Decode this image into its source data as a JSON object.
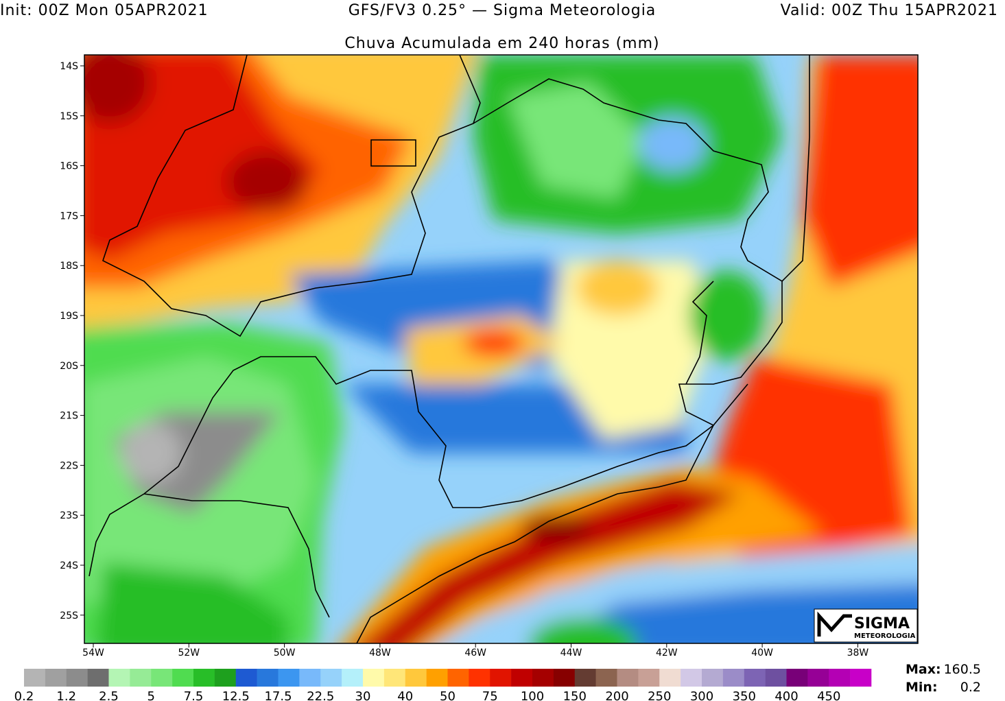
{
  "header": {
    "init": "Init: 00Z Mon 05APR2021",
    "model": "GFS/FV3 0.25° — Sigma Meteorologia",
    "valid": "Valid: 00Z Thu 15APR2021",
    "title": "Chuva Acumulada em 240 horas (mm)"
  },
  "map": {
    "lat_labels": [
      "14S",
      "15S",
      "16S",
      "17S",
      "18S",
      "19S",
      "20S",
      "21S",
      "22S",
      "23S",
      "24S",
      "25S"
    ],
    "lon_labels": [
      "54W",
      "52W",
      "50W",
      "48W",
      "46W",
      "44W",
      "42W",
      "40W",
      "38W"
    ]
  },
  "colorbar": {
    "labels": [
      "0.2",
      "1.2",
      "2.5",
      "5",
      "7.5",
      "12.5",
      "17.5",
      "22.5",
      "30",
      "40",
      "50",
      "75",
      "100",
      "150",
      "200",
      "250",
      "300",
      "350",
      "400",
      "450"
    ],
    "colors": [
      "#b4b4b4",
      "#a0a0a0",
      "#8c8c8c",
      "#6e6e6e",
      "#b4f5b4",
      "#96eb96",
      "#78e678",
      "#50dc50",
      "#28be28",
      "#1ea01e",
      "#1e5ad2",
      "#2878dc",
      "#3c96f0",
      "#78b9fa",
      "#96d2fa",
      "#b4f0fa",
      "#fffaaa",
      "#ffe678",
      "#ffc83c",
      "#ffa000",
      "#ff6400",
      "#ff3200",
      "#e11400",
      "#c00000",
      "#a50000",
      "#870000",
      "#643c32",
      "#8c6450",
      "#b48c82",
      "#c8a096",
      "#f0dcd2",
      "#d2c8e6",
      "#b4aad2",
      "#9b8cc8",
      "#7d64b4",
      "#6e50a0",
      "#780078",
      "#960096",
      "#b400b4",
      "#c800c8"
    ]
  },
  "stats": {
    "max_label": "Max:",
    "max": "160.5",
    "min_label": "Min:",
    "min": "0.2"
  },
  "logo": {
    "name": "SIGMA",
    "sub": "METEOROLOGIA"
  }
}
